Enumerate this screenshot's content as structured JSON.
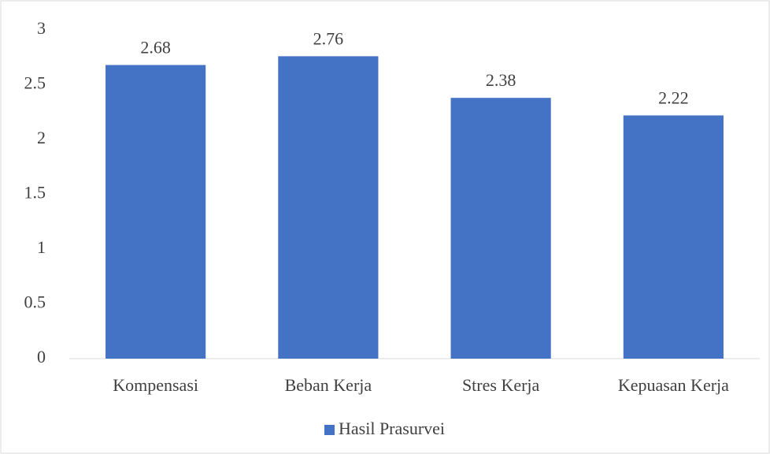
{
  "chart_data": {
    "type": "bar",
    "categories": [
      "Kompensasi",
      "Beban Kerja",
      "Stres Kerja",
      "Kepuasan Kerja"
    ],
    "series": [
      {
        "name": "Hasil Prasurvei",
        "color": "#4472c4",
        "values": [
          2.68,
          2.76,
          2.38,
          2.22
        ]
      }
    ],
    "ylim": [
      0,
      3
    ],
    "yticks": [
      0,
      0.5,
      1,
      1.5,
      2,
      2.5,
      3
    ],
    "grid": false,
    "legend": "bottom"
  }
}
